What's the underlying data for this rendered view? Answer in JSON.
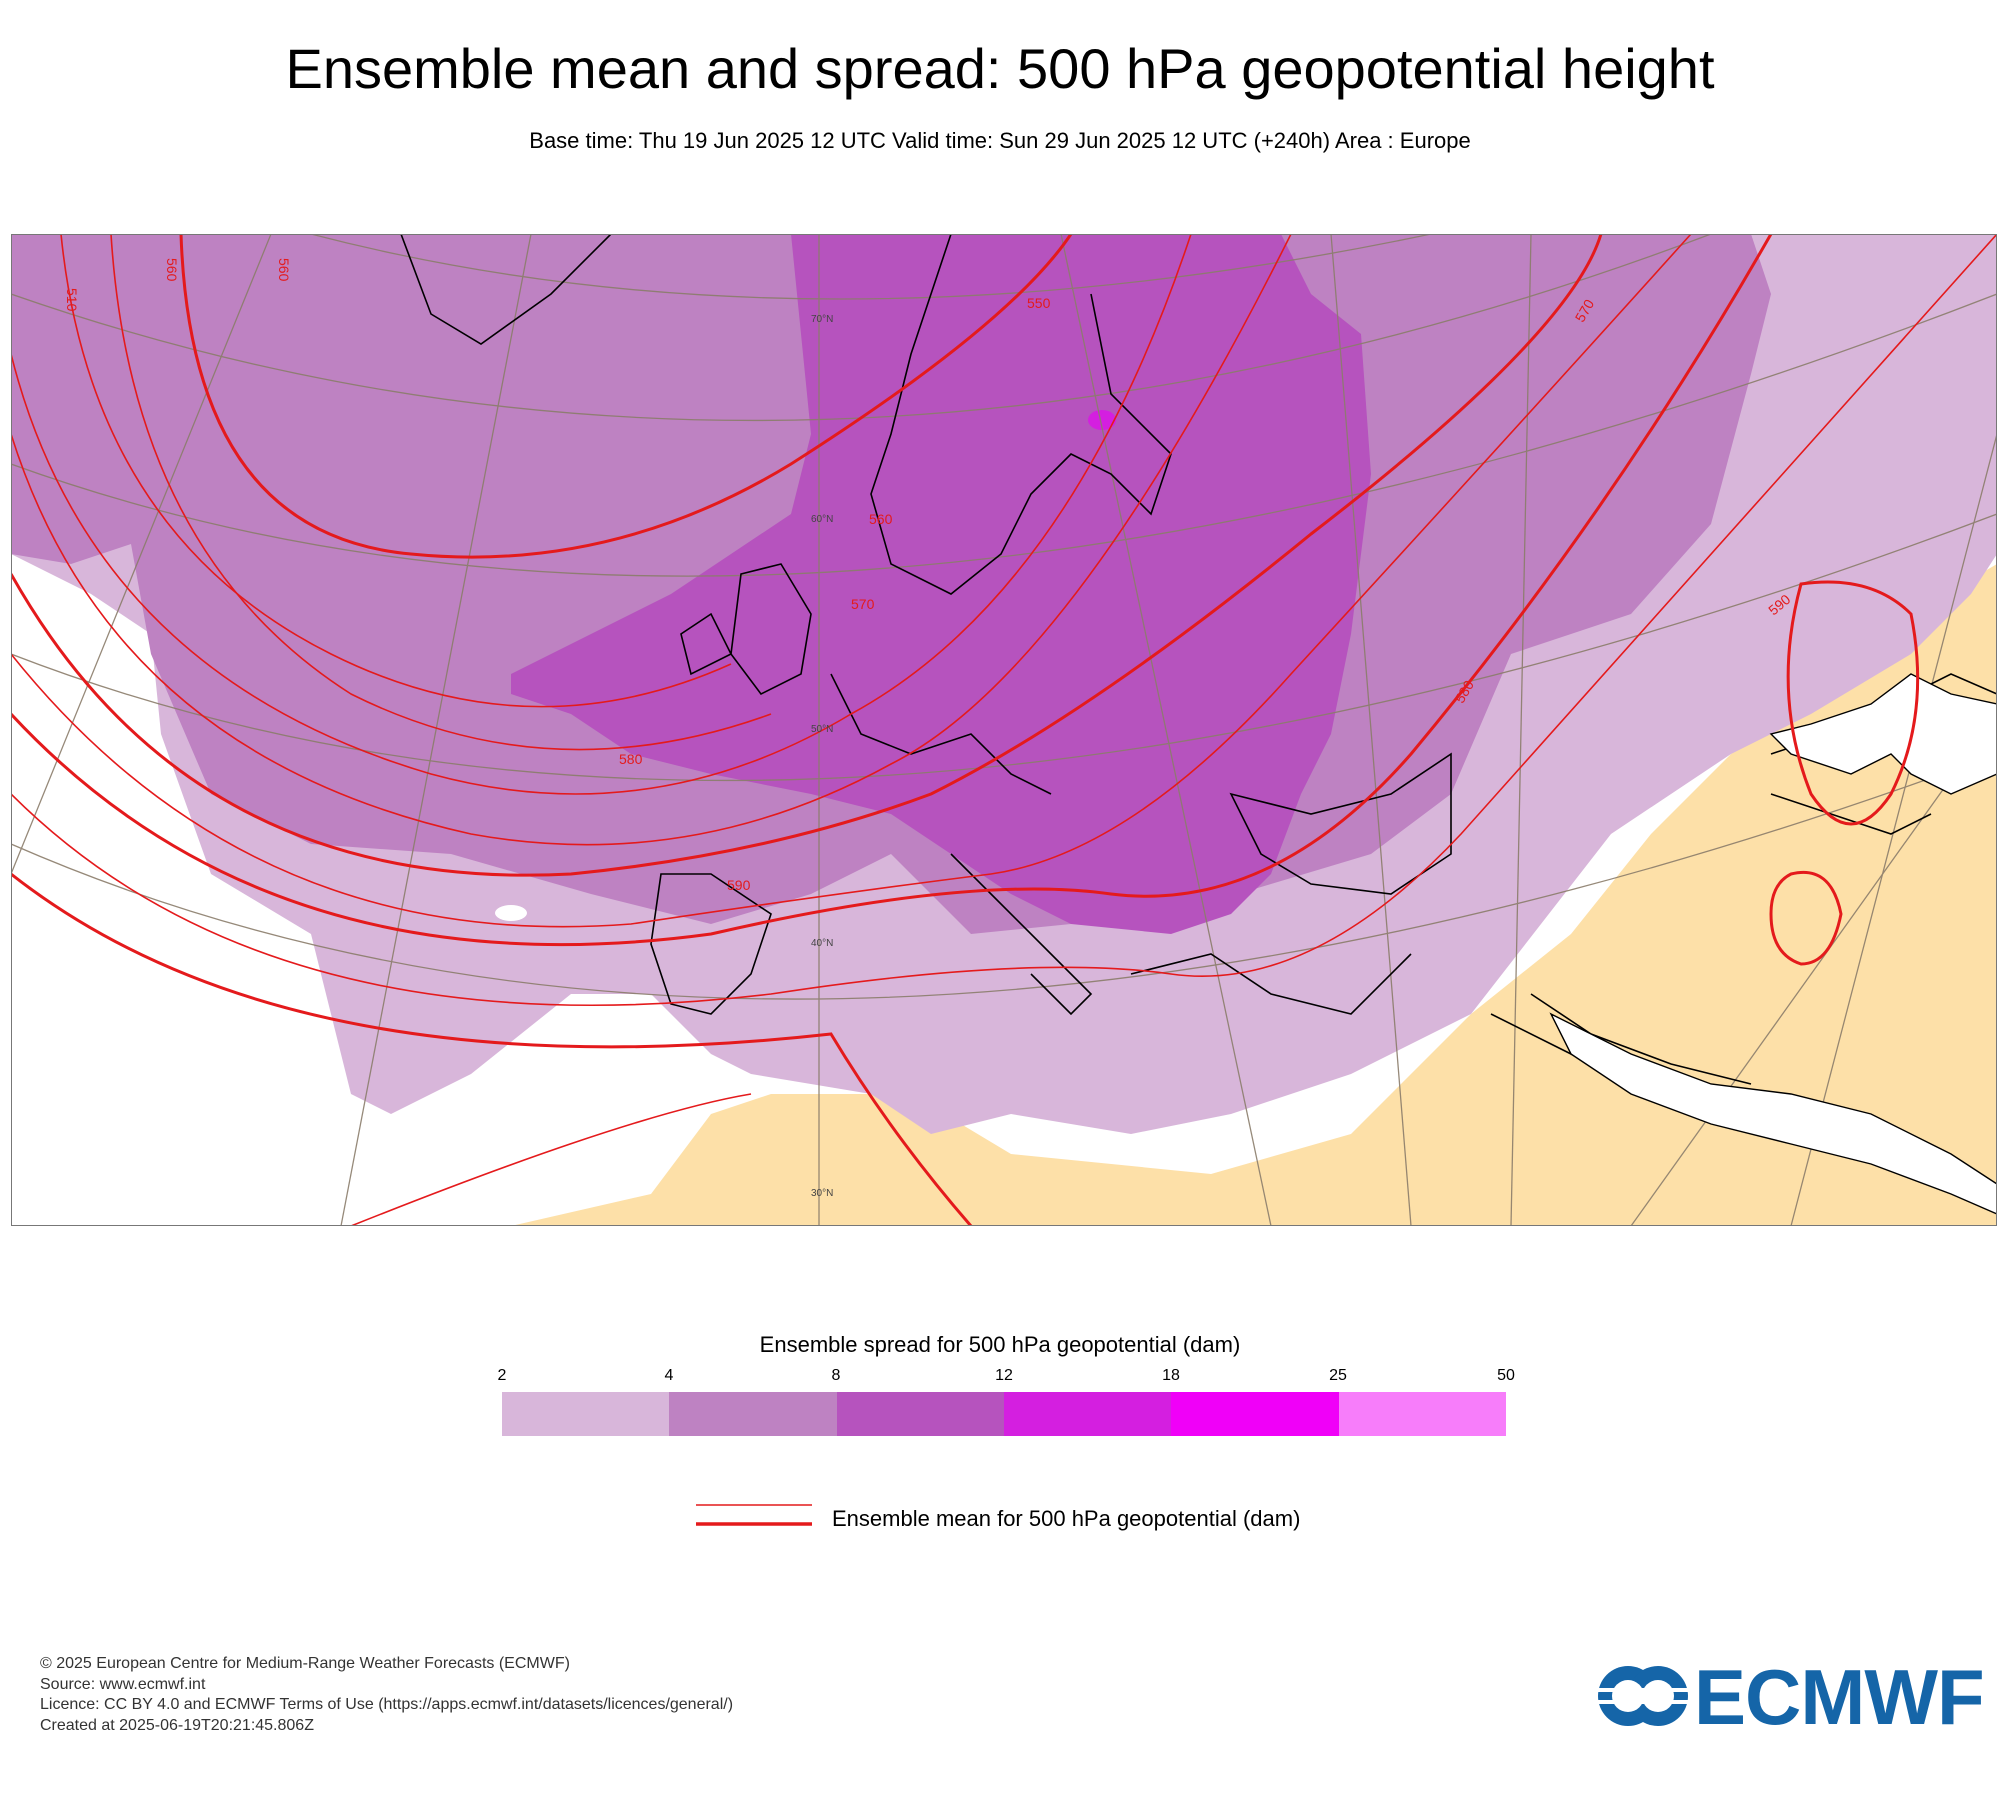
{
  "header": {
    "title": "Ensemble mean and spread: 500 hPa geopotential height",
    "subtitle": "Base time: Thu 19 Jun 2025 12 UTC Valid time: Sun 29 Jun 2025 12 UTC (+240h) Area : Europe"
  },
  "map": {
    "lat_labels": [
      "70°N",
      "60°N",
      "50°N",
      "40°N",
      "30°N"
    ],
    "contour_labels": [
      "510",
      "560",
      "560",
      "550",
      "560",
      "570",
      "570",
      "580",
      "580",
      "590",
      "590"
    ],
    "colors": {
      "no_spread": "#ffffff",
      "low_spread_region": "#fde0a8",
      "contour": "#e41a1c",
      "coastline": "#000000",
      "graticule": "#8b7d6b"
    }
  },
  "legend": {
    "spread_title": "Ensemble spread for 500 hPa geopotential (dam)",
    "spread_ticks": [
      "2",
      "4",
      "8",
      "12",
      "18",
      "25",
      "50"
    ],
    "spread_colors": [
      "#d8b6da",
      "#be82c2",
      "#b653be",
      "#d41fe0",
      "#f000f8",
      "#f77dfa"
    ],
    "mean_label": "Ensemble mean for 500 hPa geopotential (dam)"
  },
  "footer": {
    "line1": "© 2025 European Centre for Medium-Range Weather Forecasts (ECMWF)",
    "line2": "Source: www.ecmwf.int",
    "line3": "Licence: CC BY 4.0 and ECMWF Terms of Use (https://apps.ecmwf.int/datasets/licences/general/)",
    "line4": "Created at 2025-06-19T20:21:45.806Z"
  },
  "logo": {
    "text": "ECMWF",
    "color": "#1565a8"
  }
}
